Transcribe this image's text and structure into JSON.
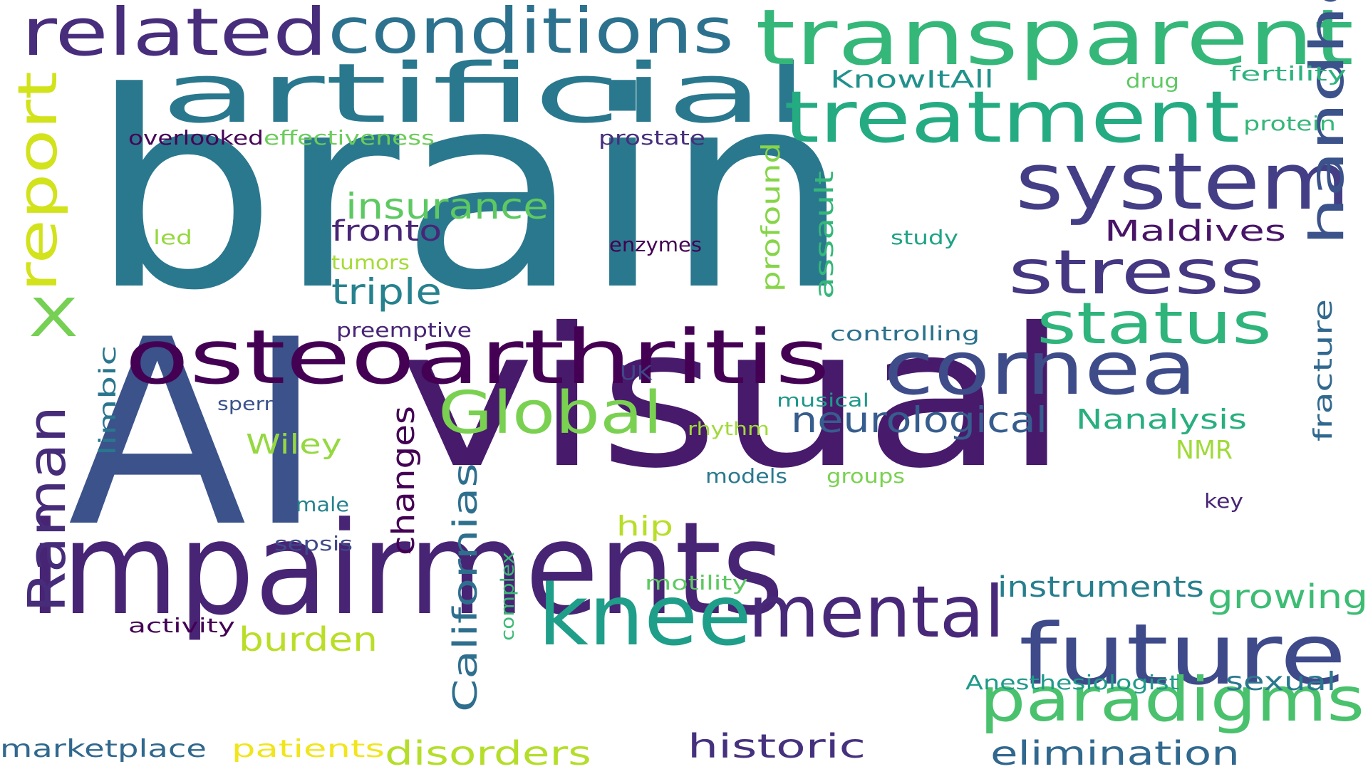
{
  "words": [
    {
      "text": "brain",
      "color": "#2a788e"
    },
    {
      "text": "AI",
      "color": "#3b528b"
    },
    {
      "text": "visual",
      "color": "#481a6c"
    },
    {
      "text": "impairments",
      "color": "#482475"
    },
    {
      "text": "artificial",
      "color": "#2a788e"
    },
    {
      "text": "transparent",
      "color": "#35b779"
    },
    {
      "text": "osteoarthritis",
      "color": "#440154"
    },
    {
      "text": "related",
      "color": "#472d7b"
    },
    {
      "text": "conditions",
      "color": "#2c728e"
    },
    {
      "text": "treatment",
      "color": "#25ab82"
    },
    {
      "text": "system",
      "color": "#433e85"
    },
    {
      "text": "knee",
      "color": "#1f9e89"
    },
    {
      "text": "future",
      "color": "#3e4a89"
    },
    {
      "text": "mental",
      "color": "#482878"
    },
    {
      "text": "cornea",
      "color": "#3e4c8a"
    },
    {
      "text": "paradigms",
      "color": "#4ac16d"
    },
    {
      "text": "stress",
      "color": "#453781"
    },
    {
      "text": "status",
      "color": "#2fb47c"
    },
    {
      "text": "Global",
      "color": "#7ad151"
    },
    {
      "text": "handheld",
      "color": "#3b528b"
    },
    {
      "text": "report",
      "color": "#d2e21b"
    },
    {
      "text": "Raman",
      "color": "#472c7a"
    },
    {
      "text": "X",
      "color": "#75d054"
    },
    {
      "text": "neurological",
      "color": "#365d8d"
    },
    {
      "text": "insurance",
      "color": "#5ec962"
    },
    {
      "text": "triple",
      "color": "#26828e"
    },
    {
      "text": "fronto",
      "color": "#482576"
    },
    {
      "text": "Californias",
      "color": "#2e6f8e"
    },
    {
      "text": "changes",
      "color": "#440154"
    },
    {
      "text": "burden",
      "color": "#bade28"
    },
    {
      "text": "historic",
      "color": "#46317e"
    },
    {
      "text": "disorders",
      "color": "#b5de2b"
    },
    {
      "text": "elimination",
      "color": "#31688e"
    },
    {
      "text": "growing",
      "color": "#3dbc74"
    },
    {
      "text": "instruments",
      "color": "#277f8e"
    },
    {
      "text": "Maldives",
      "color": "#481467"
    },
    {
      "text": "Nanalysis",
      "color": "#29af7f"
    },
    {
      "text": "fracture",
      "color": "#31688e"
    },
    {
      "text": "profound",
      "color": "#86d549"
    },
    {
      "text": "assault",
      "color": "#35b779"
    },
    {
      "text": "marketplace",
      "color": "#31688e"
    },
    {
      "text": "patients",
      "color": "#f1e51d"
    },
    {
      "text": "KnowItAll",
      "color": "#21918c"
    },
    {
      "text": "sexual",
      "color": "#2a788e"
    },
    {
      "text": "Wiley",
      "color": "#95d840"
    },
    {
      "text": "limbic",
      "color": "#2a768e"
    },
    {
      "text": "hip",
      "color": "#b8de29"
    },
    {
      "text": "NMR",
      "color": "#9fda3a"
    },
    {
      "text": "Anesthesiologist",
      "color": "#1f9a8a"
    },
    {
      "text": "overlooked",
      "color": "#450457"
    },
    {
      "text": "effectiveness",
      "color": "#6ccd5a"
    },
    {
      "text": "prostate",
      "color": "#472f7d"
    },
    {
      "text": "preemptive",
      "color": "#482576"
    },
    {
      "text": "controlling",
      "color": "#2c728e"
    },
    {
      "text": "complex",
      "color": "#3bbb75"
    },
    {
      "text": "fertility",
      "color": "#2db27d"
    },
    {
      "text": "protein",
      "color": "#35b779"
    },
    {
      "text": "drug",
      "color": "#5ec962"
    },
    {
      "text": "tumors",
      "color": "#a5db36"
    },
    {
      "text": "led",
      "color": "#95d840"
    },
    {
      "text": "enzymes",
      "color": "#440154"
    },
    {
      "text": "study",
      "color": "#20a386"
    },
    {
      "text": "UK",
      "color": "#3f4788"
    },
    {
      "text": "sperm",
      "color": "#3b528b"
    },
    {
      "text": "musical",
      "color": "#1f988b"
    },
    {
      "text": "rhythm",
      "color": "#a0da39"
    },
    {
      "text": "models",
      "color": "#2a788e"
    },
    {
      "text": "groups",
      "color": "#7ad151"
    },
    {
      "text": "male",
      "color": "#26828e"
    },
    {
      "text": "key",
      "color": "#482475"
    },
    {
      "text": "sepsis",
      "color": "#3e4a89"
    },
    {
      "text": "motility",
      "color": "#5ec962"
    },
    {
      "text": "activity",
      "color": "#440154"
    }
  ]
}
